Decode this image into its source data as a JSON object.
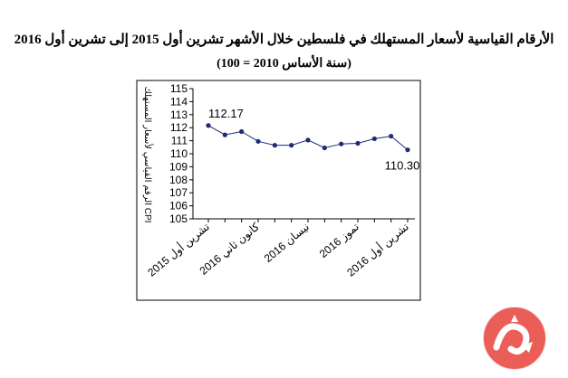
{
  "chart_data": {
    "type": "line",
    "title": "الأرقام القياسية لأسعار المستهلك في فلسطين خلال الأشهر  تشرين أول 2015 إلى تشرين أول 2016",
    "subtitle": "(سنة الأساس 2010 = 100)",
    "ylabel": "الرقم القياسي لأسعار المستهلك  CPI",
    "ylim": [
      105,
      115
    ],
    "yticks": [
      105,
      106,
      107,
      108,
      109,
      110,
      111,
      112,
      113,
      114,
      115
    ],
    "xtick_labels": [
      "تشرين أول 2015",
      "كانون ثاني 2016",
      "نيسان 2016",
      "تموز 2016",
      "تشرين أول 2016"
    ],
    "xtick_indices": [
      0,
      3,
      6,
      9,
      12
    ],
    "series": [
      {
        "values": [
          112.17,
          111.45,
          111.7,
          110.95,
          110.65,
          110.65,
          111.05,
          110.45,
          110.75,
          110.8,
          111.15,
          111.35,
          110.3
        ]
      }
    ],
    "data_labels": [
      {
        "index": 0,
        "text": "112.17"
      },
      {
        "index": 12,
        "text": "110.30"
      }
    ],
    "grid": false,
    "line_color": "#1f2a78"
  },
  "logo": {
    "name": "news-agency-logo",
    "color": "#e8413a"
  }
}
